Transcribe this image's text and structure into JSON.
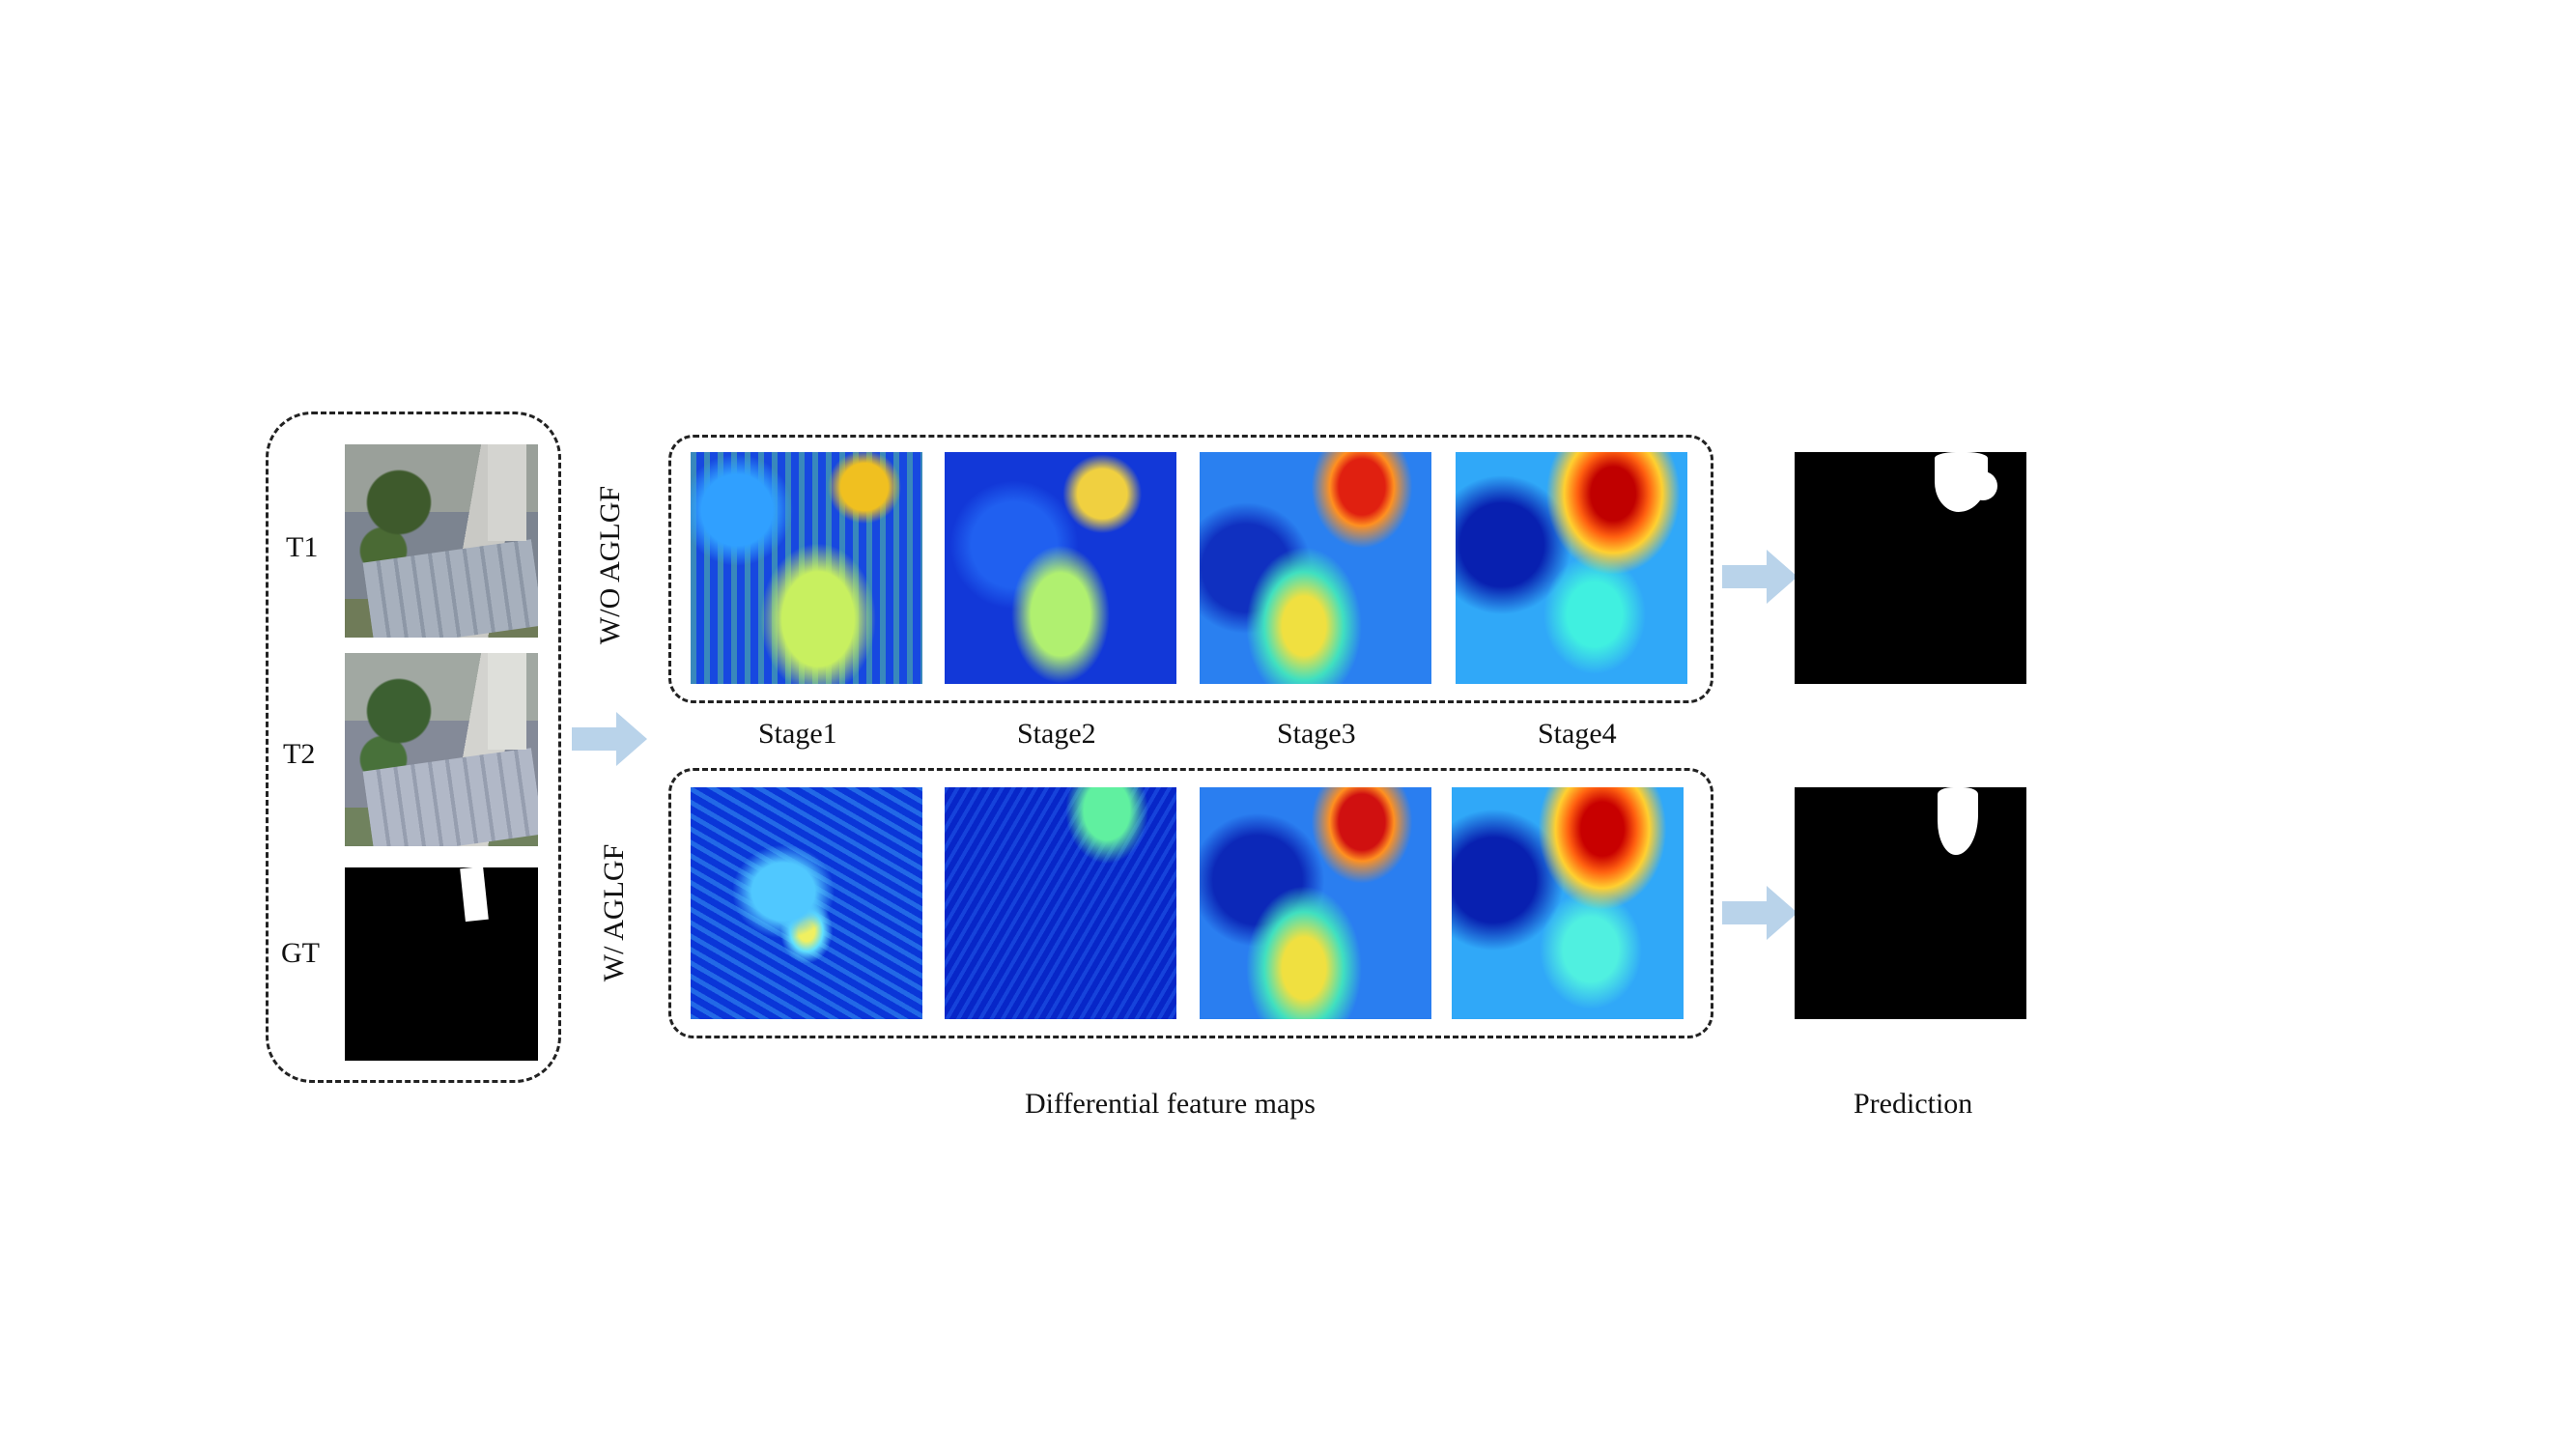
{
  "inputs": {
    "t1_label": "T1",
    "t2_label": "T2",
    "gt_label": "GT"
  },
  "rows": {
    "without_label": "W/O AGLGF",
    "with_label": "W/ AGLGF"
  },
  "stages": [
    "Stage1",
    "Stage2",
    "Stage3",
    "Stage4"
  ],
  "captions": {
    "feature_maps": "Differential feature maps",
    "prediction": "Prediction"
  },
  "colors": {
    "arrow": "#b9d3ea",
    "border": "#222222"
  }
}
